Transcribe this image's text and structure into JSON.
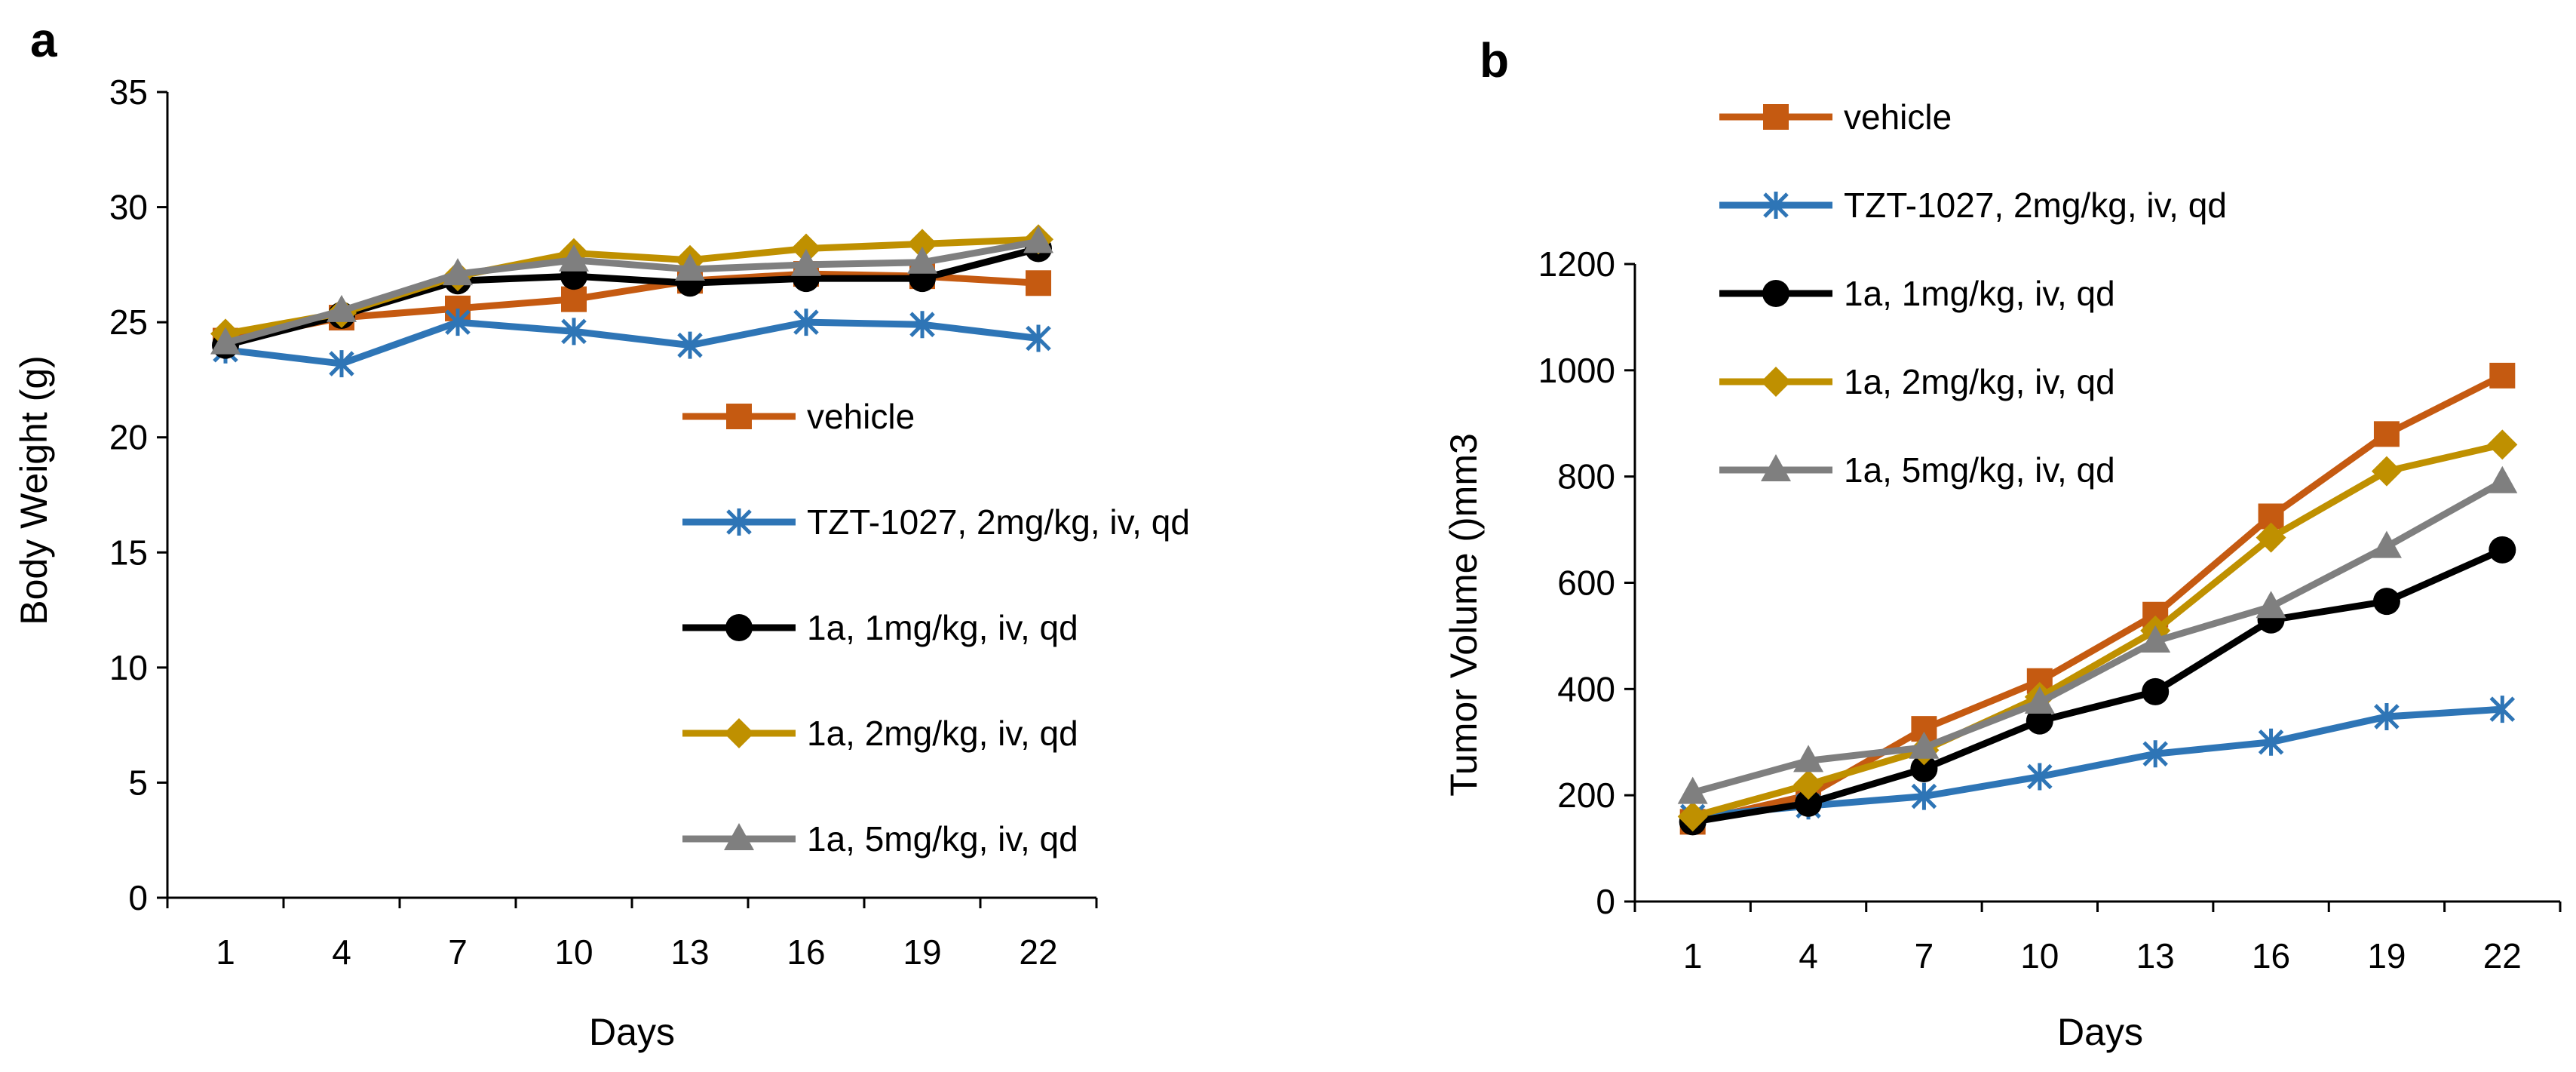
{
  "chart_data": [
    {
      "type": "line",
      "panel_label": "a",
      "title": "",
      "xlabel": "Days",
      "ylabel": "Body Weight (g)",
      "categories": [
        "1",
        "4",
        "7",
        "10",
        "13",
        "16",
        "19",
        "22"
      ],
      "ylim": [
        0,
        35
      ],
      "yticks": [
        "0",
        "5",
        "10",
        "15",
        "20",
        "25",
        "30",
        "35"
      ],
      "legend_position": "center-right",
      "series": [
        {
          "name": "vehicle",
          "color": "#C55A11",
          "marker": "square",
          "values": [
            24.2,
            25.2,
            25.6,
            26.0,
            26.8,
            27.1,
            27.0,
            26.7
          ]
        },
        {
          "name": "TZT-1027, 2mg/kg, iv, qd",
          "color": "#2E75B6",
          "marker": "star",
          "values": [
            23.8,
            23.2,
            25.0,
            24.6,
            24.0,
            25.0,
            24.9,
            24.3
          ]
        },
        {
          "name": "1a, 1mg/kg, iv, qd",
          "color": "#000000",
          "marker": "circle",
          "values": [
            24.0,
            25.3,
            26.8,
            27.0,
            26.7,
            26.9,
            26.9,
            28.2
          ]
        },
        {
          "name": "1a, 2mg/kg, iv, qd",
          "color": "#BF9000",
          "marker": "diamond",
          "values": [
            24.5,
            25.4,
            27.0,
            28.0,
            27.7,
            28.2,
            28.4,
            28.6
          ]
        },
        {
          "name": "1a, 5mg/kg, iv, qd",
          "color": "#7F7F7F",
          "marker": "triangle",
          "values": [
            24.1,
            25.5,
            27.1,
            27.7,
            27.3,
            27.5,
            27.6,
            28.5
          ]
        }
      ]
    },
    {
      "type": "line",
      "panel_label": "b",
      "title": "",
      "xlabel": "Days",
      "ylabel": "Tumor Volume ()mm3",
      "categories": [
        "1",
        "4",
        "7",
        "10",
        "13",
        "16",
        "19",
        "22"
      ],
      "ylim": [
        0,
        1200
      ],
      "yticks": [
        "0",
        "200",
        "400",
        "600",
        "800",
        "1000",
        "1200"
      ],
      "legend_position": "top-left",
      "series": [
        {
          "name": "vehicle",
          "color": "#C55A11",
          "marker": "square",
          "values": [
            150,
            200,
            325,
            415,
            540,
            725,
            880,
            990
          ]
        },
        {
          "name": "TZT-1027, 2mg/kg, iv, qd",
          "color": "#2E75B6",
          "marker": "star",
          "values": [
            160,
            180,
            198,
            235,
            278,
            300,
            348,
            362
          ]
        },
        {
          "name": "1a, 1mg/kg, iv, qd",
          "color": "#000000",
          "marker": "circle",
          "values": [
            150,
            185,
            250,
            340,
            395,
            530,
            565,
            662
          ]
        },
        {
          "name": "1a, 2mg/kg, iv, qd",
          "color": "#BF9000",
          "marker": "diamond",
          "values": [
            160,
            220,
            285,
            385,
            510,
            685,
            810,
            860
          ]
        },
        {
          "name": "1a, 5mg/kg, iv, qd",
          "color": "#7F7F7F",
          "marker": "triangle",
          "values": [
            205,
            265,
            290,
            375,
            490,
            555,
            668,
            790
          ]
        }
      ]
    }
  ]
}
